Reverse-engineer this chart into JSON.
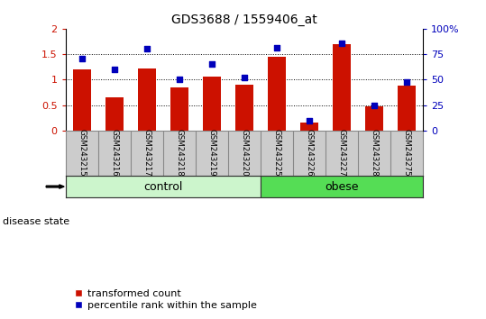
{
  "title": "GDS3688 / 1559406_at",
  "categories": [
    "GSM243215",
    "GSM243216",
    "GSM243217",
    "GSM243218",
    "GSM243219",
    "GSM243220",
    "GSM243225",
    "GSM243226",
    "GSM243227",
    "GSM243228",
    "GSM243275"
  ],
  "transformed_count": [
    1.21,
    0.65,
    1.22,
    0.85,
    1.06,
    0.9,
    1.45,
    0.15,
    1.7,
    0.48,
    0.88
  ],
  "percentile_rank_pct": [
    71,
    60,
    80,
    50,
    65,
    52,
    81,
    10,
    86,
    25,
    48
  ],
  "disease_state": [
    "control",
    "control",
    "control",
    "control",
    "control",
    "control",
    "obese",
    "obese",
    "obese",
    "obese",
    "obese"
  ],
  "control_color": "#ccf5cc",
  "obese_color": "#55dd55",
  "bar_color": "#cc1100",
  "dot_color": "#0000bb",
  "ylim_left": [
    0,
    2
  ],
  "ylim_right": [
    0,
    100
  ],
  "yticks_left": [
    0,
    0.5,
    1.0,
    1.5,
    2.0
  ],
  "yticks_right": [
    0,
    25,
    50,
    75,
    100
  ],
  "ytick_labels_left": [
    "0",
    "0.5",
    "1",
    "1.5",
    "2"
  ],
  "ytick_labels_right": [
    "0",
    "25",
    "50",
    "75",
    "100%"
  ],
  "legend_labels": [
    "transformed count",
    "percentile rank within the sample"
  ],
  "disease_label": "disease state",
  "group_labels": [
    "control",
    "obese"
  ],
  "background_color": "#ffffff",
  "xlabel_bg_color": "#cccccc",
  "xlabel_border_color": "#999999"
}
